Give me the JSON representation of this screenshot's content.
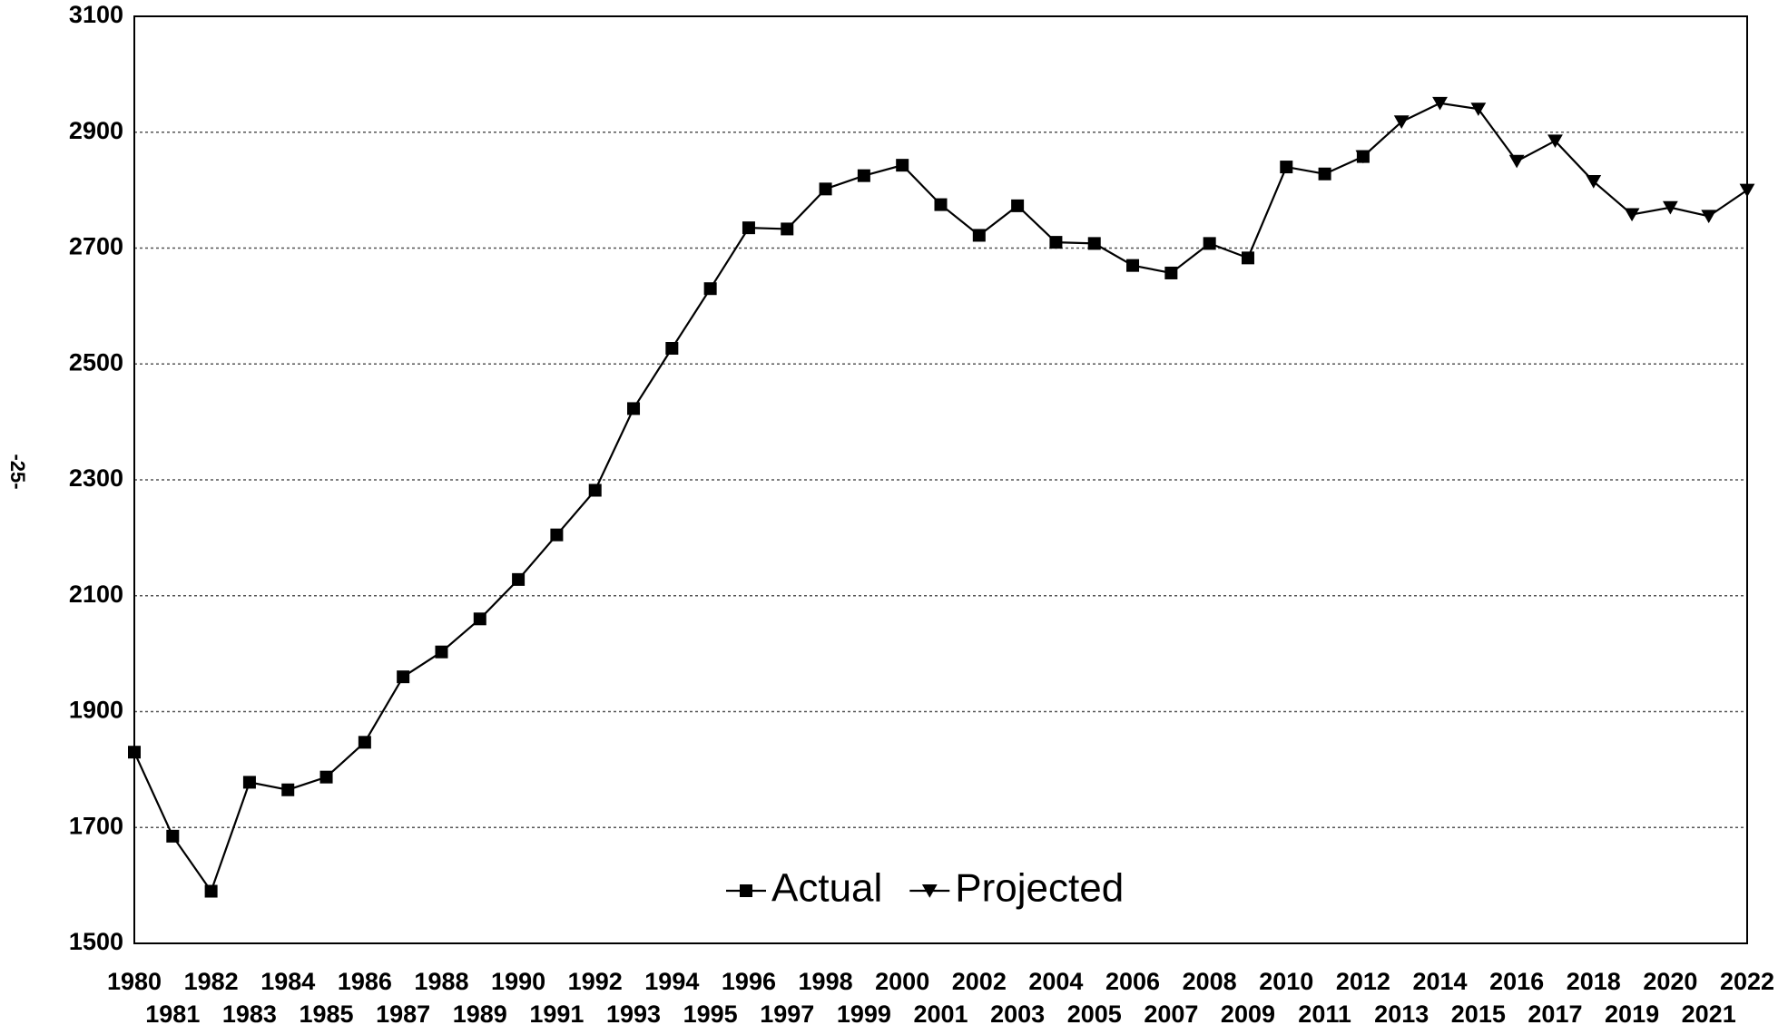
{
  "page_label": "-25-",
  "chart_data": {
    "type": "line",
    "categories": [
      "1980",
      "1981",
      "1982",
      "1983",
      "1984",
      "1985",
      "1986",
      "1987",
      "1988",
      "1989",
      "1990",
      "1991",
      "1992",
      "1993",
      "1994",
      "1995",
      "1996",
      "1997",
      "1998",
      "1999",
      "2000",
      "2001",
      "2002",
      "2003",
      "2004",
      "2005",
      "2006",
      "2007",
      "2008",
      "2009",
      "2010",
      "2011",
      "2012",
      "2013",
      "2014",
      "2015",
      "2016",
      "2017",
      "2018",
      "2019",
      "2020",
      "2021",
      "2022"
    ],
    "series": [
      {
        "name": "Actual",
        "color": "#000000",
        "marker": "square",
        "values": [
          1830,
          1685,
          1590,
          1778,
          1765,
          1787,
          1847,
          1960,
          2003,
          2060,
          2128,
          2205,
          2282,
          2423,
          2527,
          2630,
          2735,
          2733,
          2802,
          2825,
          2843,
          2775,
          2722,
          2773,
          2710,
          2708,
          2670,
          2657,
          2708,
          2683,
          2840,
          2828,
          2858,
          null,
          null,
          null,
          null,
          null,
          null,
          null,
          null,
          null,
          null
        ]
      },
      {
        "name": "Projected",
        "color": "#000000",
        "marker": "triangle-down",
        "values": [
          null,
          null,
          null,
          null,
          null,
          null,
          null,
          null,
          null,
          null,
          null,
          null,
          null,
          null,
          null,
          null,
          null,
          null,
          null,
          null,
          null,
          null,
          null,
          null,
          null,
          null,
          null,
          null,
          null,
          null,
          null,
          null,
          2858,
          2918,
          2950,
          2940,
          2850,
          2885,
          2815,
          2758,
          2770,
          2755,
          2800
        ]
      }
    ],
    "ylim": [
      1500,
      3100
    ],
    "yticks": [
      1500,
      1700,
      1900,
      2100,
      2300,
      2500,
      2700,
      2900,
      3100
    ],
    "grid": true,
    "legend": "bottom"
  }
}
